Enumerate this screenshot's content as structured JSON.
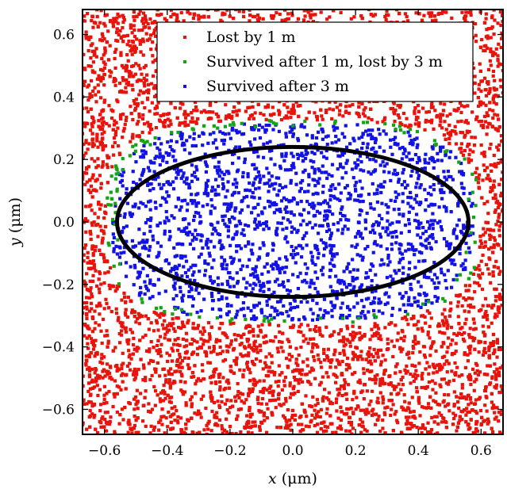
{
  "chart_data": {
    "type": "scatter",
    "title": "",
    "xlabel": "x (μm)",
    "ylabel": "y (μm)",
    "xlabel_var": "x",
    "xlabel_unit": " (μm)",
    "ylabel_var": "y",
    "ylabel_unit": " (μm)",
    "xlim": [
      -0.67,
      0.67
    ],
    "ylim": [
      -0.68,
      0.68
    ],
    "xticks": [
      -0.6,
      -0.4,
      -0.2,
      0.0,
      0.2,
      0.4,
      0.6
    ],
    "yticks": [
      -0.6,
      -0.4,
      -0.2,
      0.0,
      0.2,
      0.4,
      0.6
    ],
    "xtick_labels": [
      "−0.6",
      "−0.4",
      "−0.2",
      "0.0",
      "0.2",
      "0.4",
      "0.6"
    ],
    "ytick_labels": [
      "−0.6",
      "−0.4",
      "−0.2",
      "0.0",
      "0.2",
      "0.4",
      "0.6"
    ],
    "grid": false,
    "legend_position": "top-right",
    "series": [
      {
        "name": "Lost by 1 m",
        "color": "#e8140c",
        "region": "outside the survival region, uniformly distributed over the full plot",
        "approx_count": 5000
      },
      {
        "name": "Survived after 1 m, lost by 3 m",
        "color": "#15a415",
        "region": "thin band at the edge of the survival region",
        "approx_count": 120
      },
      {
        "name": "Survived after 3 m",
        "color": "#1212e6",
        "region": "inside a rounded region, x from about -0.57 to 0.58, y from about -0.31 to 0.32",
        "approx_count": 1900
      }
    ],
    "overlay_ellipse": {
      "center_x": 0.0,
      "center_y": 0.0,
      "semi_axis_x": 0.56,
      "semi_axis_y": 0.24,
      "color": "#000000"
    }
  }
}
